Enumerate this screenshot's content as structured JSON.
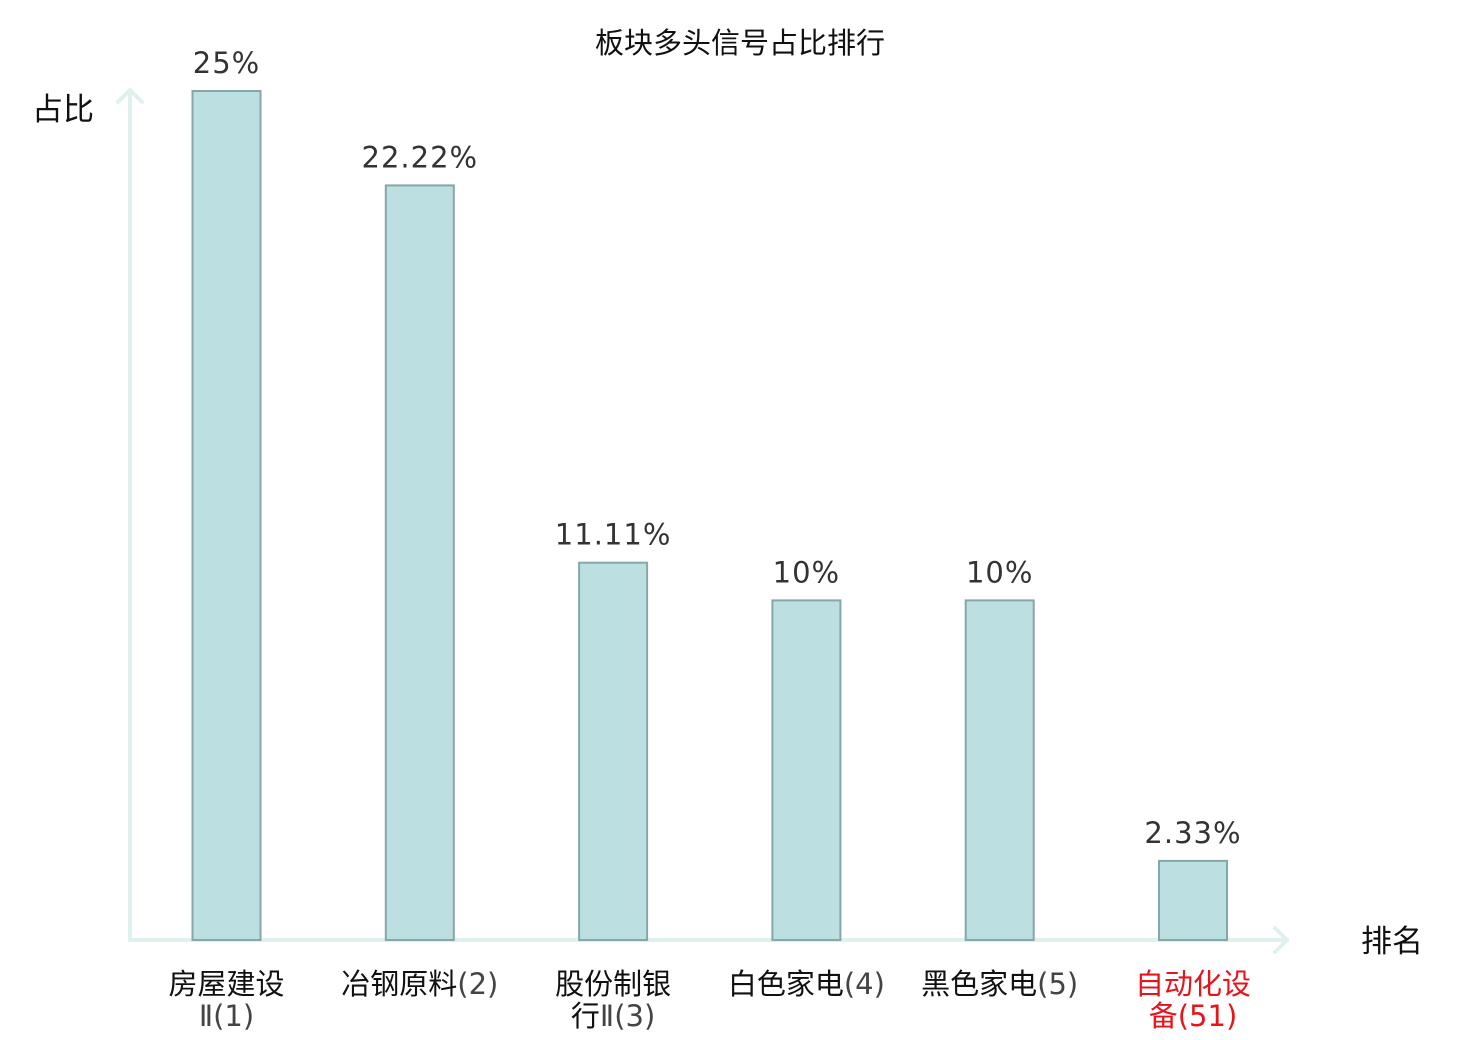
{
  "chart_data": {
    "type": "bar",
    "title": "板块多头信号占比排行",
    "ylabel": "占比",
    "xlabel": "排名",
    "ylim": [
      0,
      25
    ],
    "grid": false,
    "categories": [
      "房屋建设Ⅱ(1)",
      "冶钢原料(2)",
      "股份制银行Ⅱ(3)",
      "白色家电(4)",
      "黑色家电(5)",
      "自动化设备(51)"
    ],
    "values": [
      25,
      22.22,
      11.11,
      10,
      10,
      2.33
    ],
    "value_labels": [
      "25%",
      "22.22%",
      "11.11%",
      "10%",
      "10%",
      "2.33%"
    ],
    "highlight_index": 5,
    "colors": {
      "bar_fill": "#bce0e2",
      "bar_stroke": "#86a6a8",
      "axis": "#dff1ef",
      "label_text": "#333333",
      "highlight_text": "#e8141c",
      "normal_text": "#111111",
      "rank_text": "#444444"
    }
  }
}
